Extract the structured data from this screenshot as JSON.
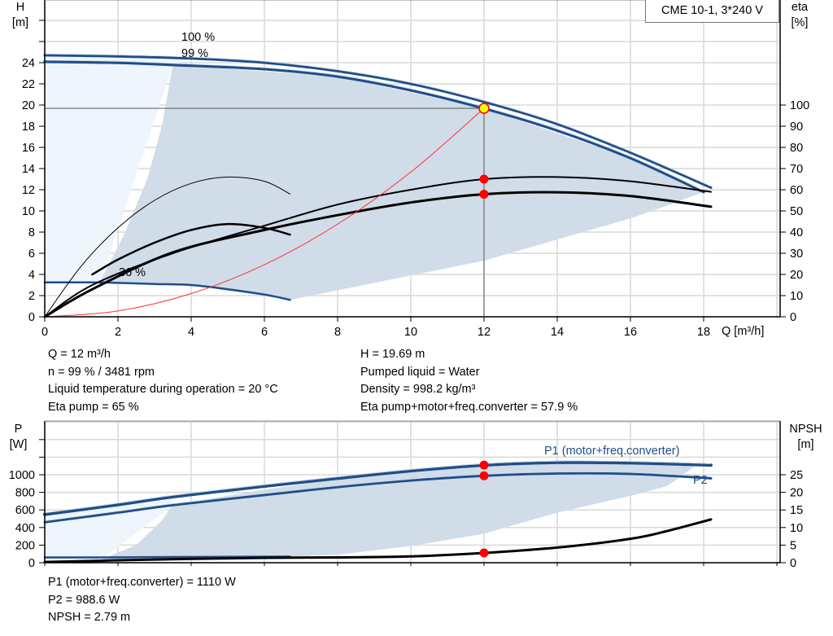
{
  "chart_data": [
    {
      "type": "line",
      "title": "CME 10-1, 3*240 V",
      "xlabel": "Q [m³/h]",
      "ylabel_left": {
        "name": "H",
        "unit": "[m]"
      },
      "ylabel_right": {
        "name": "eta",
        "unit": "[%]"
      },
      "xlim": [
        0,
        20
      ],
      "ylim_left": [
        0,
        30
      ],
      "ylim_right": [
        0,
        115
      ],
      "grid": true,
      "x_ticks": [
        "0",
        "2",
        "4",
        "6",
        "8",
        "10",
        "12",
        "14",
        "16",
        "18"
      ],
      "y_left_ticks": [
        "0",
        "2",
        "4",
        "6",
        "8",
        "10",
        "12",
        "14",
        "16",
        "18",
        "20",
        "22",
        "24"
      ],
      "y_right_ticks": [
        "0",
        "10",
        "20",
        "30",
        "40",
        "50",
        "60",
        "70",
        "80",
        "90",
        "100"
      ],
      "curve_labels": [
        "100 %",
        "99 %",
        "36 %"
      ],
      "regions": [
        {
          "kind": "light",
          "color": "#eef5fc",
          "points": [
            [
              0,
              24.7
            ],
            [
              4,
              24.4
            ],
            [
              3.5,
              23.8
            ],
            [
              1.5,
              3.2
            ],
            [
              0,
              3.25
            ]
          ]
        },
        {
          "kind": "operating",
          "color": "#d0dce8",
          "points": [
            [
              1.5,
              3.2
            ],
            [
              2.2,
              8
            ],
            [
              2.8,
              13
            ],
            [
              3.2,
              18
            ],
            [
              3.5,
              23.8
            ],
            [
              8,
              22.7
            ],
            [
              12,
              19.69
            ],
            [
              16,
              15
            ],
            [
              18,
              11.8
            ],
            [
              17,
              10.5
            ],
            [
              16,
              9.3
            ],
            [
              14,
              7.3
            ],
            [
              12,
              5.3
            ],
            [
              10,
              3.9
            ],
            [
              8,
              2.5
            ],
            [
              6.7,
              1.6
            ],
            [
              4,
              3
            ],
            [
              1.5,
              3.2
            ]
          ]
        }
      ],
      "series": [
        {
          "label": "100 %",
          "axis": "H",
          "color": "#1f4e89",
          "width": 3,
          "x": [
            0,
            2,
            4,
            6,
            8,
            10,
            12,
            14,
            16,
            18.2
          ],
          "y": [
            24.7,
            24.6,
            24.4,
            24,
            23.2,
            22,
            20.3,
            18.2,
            15.5,
            12.2
          ]
        },
        {
          "label": "99 %",
          "axis": "H",
          "color": "#1f4e89",
          "width": 3.5,
          "x": [
            0,
            2,
            3.5,
            6,
            8,
            10,
            12,
            14,
            16,
            18
          ],
          "y": [
            24.1,
            24,
            23.8,
            23.4,
            22.7,
            21.4,
            19.69,
            17.6,
            15,
            11.8
          ]
        },
        {
          "label": "36 %",
          "axis": "H",
          "color": "#1f4e89",
          "width": 2.5,
          "x": [
            0,
            1.3,
            2,
            3,
            4,
            5,
            6,
            6.7
          ],
          "y": [
            3.25,
            3.25,
            3.2,
            3.1,
            3,
            2.6,
            2.1,
            1.6
          ]
        },
        {
          "axis": "eta",
          "color": "#000",
          "width": 1,
          "x": [
            0,
            1,
            2,
            3,
            4,
            5,
            6,
            6.7
          ],
          "y": [
            0,
            24,
            42,
            55,
            63,
            66,
            64,
            58
          ]
        },
        {
          "axis": "eta",
          "color": "#000",
          "width": 2.5,
          "x": [
            1.3,
            2,
            3,
            4,
            5,
            6,
            6.7
          ],
          "y": [
            20,
            27,
            35,
            41,
            43.8,
            42,
            38.8
          ]
        },
        {
          "axis": "eta",
          "color": "#000",
          "width": 2,
          "x": [
            0,
            1.3,
            3.5,
            6,
            8,
            10,
            12,
            14,
            16,
            18.2
          ],
          "y": [
            0,
            15,
            30,
            43,
            53,
            60,
            65,
            66,
            64,
            59
          ]
        },
        {
          "axis": "eta",
          "color": "#000",
          "width": 3,
          "x": [
            0,
            1.3,
            3.5,
            6,
            8,
            10,
            12,
            14,
            16,
            18.2
          ],
          "y": [
            0,
            13,
            30.4,
            41,
            48,
            54,
            57.9,
            58.8,
            57,
            52
          ]
        },
        {
          "label": "system",
          "axis": "H",
          "color": "#ff3030",
          "width": 1,
          "x": [
            0,
            2,
            4,
            6,
            8,
            10,
            12
          ],
          "y": [
            0,
            0.55,
            2.19,
            4.92,
            8.75,
            13.67,
            19.69
          ]
        }
      ],
      "operating_point": {
        "Q": 12,
        "H": 19.69,
        "eta_pump": 65,
        "eta_total": 57.9
      }
    },
    {
      "type": "line",
      "ylabel_left": {
        "name": "P",
        "unit": "[W]"
      },
      "ylabel_right": {
        "name": "NPSH",
        "unit": "[m]"
      },
      "xlim": [
        0,
        20
      ],
      "ylim_left": [
        0,
        1610
      ],
      "ylim_right": [
        0,
        40
      ],
      "grid": true,
      "y_left_ticks": [
        "0",
        "200",
        "400",
        "600",
        "800",
        "1000"
      ],
      "y_right_ticks": [
        "0",
        "5",
        "10",
        "15",
        "20",
        "25"
      ],
      "regions": [
        {
          "kind": "light",
          "color": "#eef5fc",
          "points": [
            [
              0,
              550
            ],
            [
              3.5,
              740
            ],
            [
              3.5,
              650
            ],
            [
              1.5,
              30
            ],
            [
              0,
              30
            ]
          ]
        },
        {
          "kind": "operating",
          "color": "#d0dce8",
          "points": [
            [
              1.5,
              30
            ],
            [
              2.5,
              200
            ],
            [
              3.2,
              480
            ],
            [
              3.5,
              660
            ],
            [
              6,
              830
            ],
            [
              8,
              950
            ],
            [
              10,
              1045
            ],
            [
              12,
              1110
            ],
            [
              14,
              1140
            ],
            [
              16,
              1140
            ],
            [
              17.8,
              1110
            ],
            [
              17,
              870
            ],
            [
              16,
              760
            ],
            [
              14,
              570
            ],
            [
              12,
              330
            ],
            [
              10,
              190
            ],
            [
              8,
              90
            ],
            [
              6.7,
              70
            ],
            [
              1.5,
              30
            ]
          ]
        }
      ],
      "series": [
        {
          "label": "P1 (motor+freq.converter)",
          "axis": "P",
          "color": "#1f4e89",
          "width": 4,
          "x": [
            0,
            2,
            3.5,
            6,
            8,
            10,
            12,
            14,
            16,
            18.2
          ],
          "y": [
            550,
            660,
            750,
            870,
            960,
            1045,
            1110,
            1140,
            1135,
            1110
          ]
        },
        {
          "label": "P2",
          "axis": "P",
          "color": "#1f4e89",
          "width": 3,
          "x": [
            0,
            2,
            3.5,
            6,
            8,
            10,
            12,
            14,
            16,
            18.2
          ],
          "y": [
            460,
            570,
            655,
            770,
            860,
            935,
            988.6,
            1015,
            1010,
            960
          ]
        },
        {
          "axis": "P",
          "color": "#1f4e89",
          "width": 2.5,
          "x": [
            0,
            1.3,
            3.5,
            6.7
          ],
          "y": [
            60,
            60,
            65,
            70
          ]
        },
        {
          "label": "NPSH",
          "axis": "NPSH",
          "color": "#000",
          "width": 3,
          "x": [
            0,
            3,
            6,
            8,
            10,
            12,
            14,
            16,
            17,
            18.2
          ],
          "y": [
            0.2,
            0.9,
            1.4,
            1.5,
            1.8,
            2.79,
            4.3,
            6.8,
            9,
            12.3
          ]
        }
      ],
      "operating_point": {
        "Q": 12,
        "P1": 1110,
        "P2": 988.6,
        "NPSH": 2.79
      }
    }
  ],
  "info_top": {
    "left": [
      "Q = 12 m³/h",
      "n = 99 % / 3481 rpm",
      "Liquid temperature during operation = 20 °C",
      "Eta pump = 65 %"
    ],
    "right": [
      "H = 19.69 m",
      "Pumped liquid = Water",
      "Density = 998.2 kg/m³",
      "Eta pump+motor+freq.converter = 57.9 %"
    ]
  },
  "info_bottom": [
    "P1 (motor+freq.converter) = 1110 W",
    "P2 = 988.6 W",
    "NPSH = 2.79 m"
  ]
}
